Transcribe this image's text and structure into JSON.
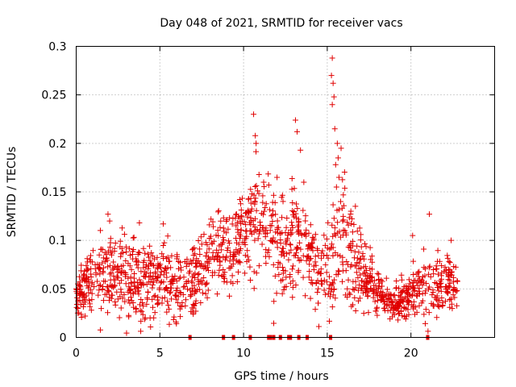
{
  "chart_data": {
    "type": "scatter",
    "title": "Day 048 of 2021, SRMTID for receiver vacs",
    "xlabel": "GPS time / hours",
    "ylabel": "SRMTID / TECUs",
    "xlim": [
      0,
      25
    ],
    "ylim": [
      0,
      0.3
    ],
    "x_ticks": [
      0,
      5,
      10,
      15,
      20
    ],
    "x_tick_labels": [
      "0",
      "5",
      "10",
      "15",
      "20"
    ],
    "y_ticks": [
      0,
      0.05,
      0.1,
      0.15,
      0.2,
      0.25,
      0.3
    ],
    "y_tick_labels": [
      "0",
      "0.05",
      "0.1",
      "0.15",
      "0.2",
      "0.25",
      "0.3"
    ],
    "grid": true,
    "marker": "plus",
    "color": "#e00000",
    "x_range_of_data": [
      0,
      22.8
    ],
    "baseline_marks_x": [
      6.8,
      8.8,
      9.4,
      10.4,
      11.5,
      11.6,
      11.8,
      12.2,
      12.7,
      12.8,
      13.3,
      13.8,
      15.2,
      21.0
    ],
    "envelope": {
      "x": [
        0,
        1,
        2,
        3,
        4,
        5,
        6,
        7,
        8,
        9,
        9.5,
        10,
        10.5,
        11,
        11.5,
        12,
        12.5,
        13,
        13.5,
        14,
        14.5,
        15,
        15.5,
        16,
        16.5,
        17,
        17.5,
        18,
        18.5,
        19,
        19.5,
        20,
        20.5,
        21,
        21.5,
        22,
        22.8
      ],
      "mean": [
        0.045,
        0.06,
        0.07,
        0.065,
        0.06,
        0.06,
        0.055,
        0.055,
        0.085,
        0.09,
        0.095,
        0.11,
        0.115,
        0.12,
        0.11,
        0.09,
        0.085,
        0.095,
        0.11,
        0.08,
        0.07,
        0.065,
        0.09,
        0.11,
        0.09,
        0.07,
        0.06,
        0.05,
        0.035,
        0.035,
        0.04,
        0.045,
        0.05,
        0.055,
        0.05,
        0.055,
        0.05
      ],
      "spread": [
        0.015,
        0.02,
        0.025,
        0.025,
        0.025,
        0.025,
        0.02,
        0.02,
        0.025,
        0.025,
        0.025,
        0.03,
        0.035,
        0.03,
        0.03,
        0.03,
        0.03,
        0.03,
        0.03,
        0.03,
        0.025,
        0.025,
        0.04,
        0.04,
        0.035,
        0.025,
        0.02,
        0.015,
        0.012,
        0.012,
        0.015,
        0.015,
        0.018,
        0.02,
        0.02,
        0.02,
        0.02
      ]
    },
    "outliers": [
      {
        "x": 1.9,
        "y": 0.127
      },
      {
        "x": 2.0,
        "y": 0.12
      },
      {
        "x": 5.2,
        "y": 0.117
      },
      {
        "x": 10.6,
        "y": 0.23
      },
      {
        "x": 10.7,
        "y": 0.208
      },
      {
        "x": 10.75,
        "y": 0.2
      },
      {
        "x": 13.1,
        "y": 0.224
      },
      {
        "x": 13.2,
        "y": 0.212
      },
      {
        "x": 13.4,
        "y": 0.193
      },
      {
        "x": 15.3,
        "y": 0.288
      },
      {
        "x": 15.25,
        "y": 0.27
      },
      {
        "x": 15.35,
        "y": 0.262
      },
      {
        "x": 15.4,
        "y": 0.248
      },
      {
        "x": 15.3,
        "y": 0.24
      },
      {
        "x": 15.45,
        "y": 0.215
      },
      {
        "x": 15.6,
        "y": 0.2
      },
      {
        "x": 15.65,
        "y": 0.185
      },
      {
        "x": 15.5,
        "y": 0.178
      },
      {
        "x": 15.7,
        "y": 0.165
      },
      {
        "x": 15.55,
        "y": 0.155
      },
      {
        "x": 15.8,
        "y": 0.14
      },
      {
        "x": 12.0,
        "y": 0.165
      },
      {
        "x": 13.6,
        "y": 0.16
      },
      {
        "x": 11.2,
        "y": 0.16
      },
      {
        "x": 21.1,
        "y": 0.127
      },
      {
        "x": 20.1,
        "y": 0.105
      },
      {
        "x": 22.4,
        "y": 0.1
      }
    ],
    "point_count": 1500,
    "seed": 48
  }
}
